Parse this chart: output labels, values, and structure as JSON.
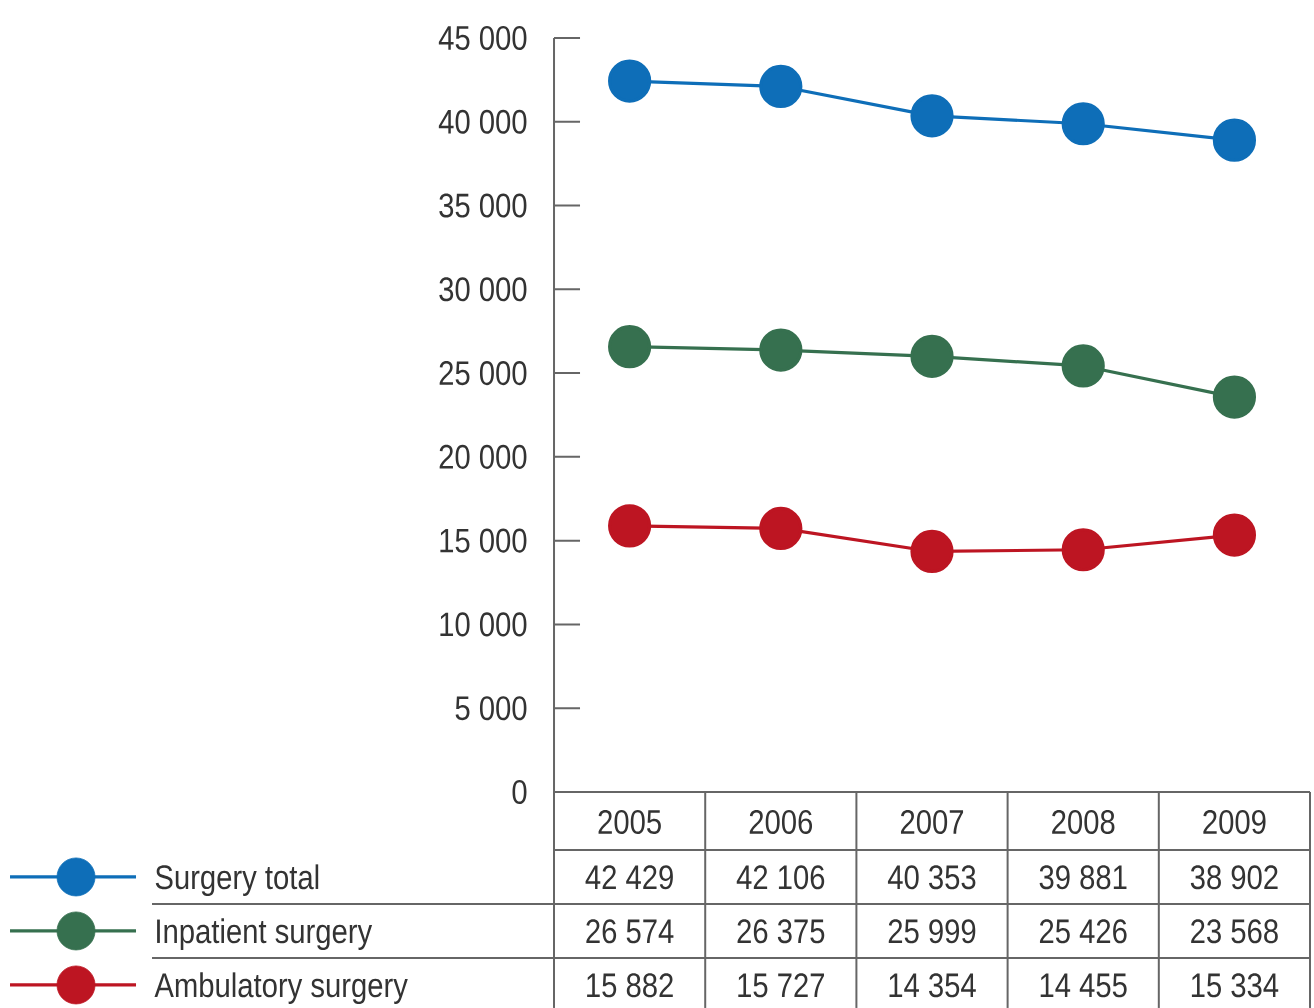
{
  "chart_data": {
    "type": "line",
    "categories": [
      "2005",
      "2006",
      "2007",
      "2008",
      "2009"
    ],
    "series": [
      {
        "name": "Surgery total",
        "color": "#0e6eb8",
        "values": [
          42429,
          42106,
          40353,
          39881,
          38902
        ],
        "value_labels": [
          "42 429",
          "42 106",
          "40 353",
          "39 881",
          "38 902"
        ]
      },
      {
        "name": "Inpatient surgery",
        "color": "#36704f",
        "values": [
          26574,
          26375,
          25999,
          25426,
          23568
        ],
        "value_labels": [
          "26 574",
          "26 375",
          "25 999",
          "25 426",
          "23 568"
        ]
      },
      {
        "name": "Ambulatory surgery",
        "color": "#bd1522",
        "values": [
          15882,
          15727,
          14354,
          14455,
          15334
        ],
        "value_labels": [
          "15 882",
          "15 727",
          "14 354",
          "14 455",
          "15 334"
        ]
      }
    ],
    "ylim": [
      0,
      45000
    ],
    "yticks": [
      0,
      {
        "value": 5000,
        "label": "5 000"
      },
      {
        "value": 10000,
        "label": "10 000"
      },
      {
        "value": 15000,
        "label": "15 000"
      },
      {
        "value": 20000,
        "label": "20 000"
      },
      {
        "value": 25000,
        "label": "25 000"
      },
      {
        "value": 30000,
        "label": "30 000"
      },
      {
        "value": 35000,
        "label": "35 000"
      },
      {
        "value": 40000,
        "label": "40 000"
      },
      {
        "value": 45000,
        "label": "45 000"
      }
    ],
    "grid": false,
    "legend": "bottom left",
    "marker": "circle",
    "line_style": "solid"
  }
}
